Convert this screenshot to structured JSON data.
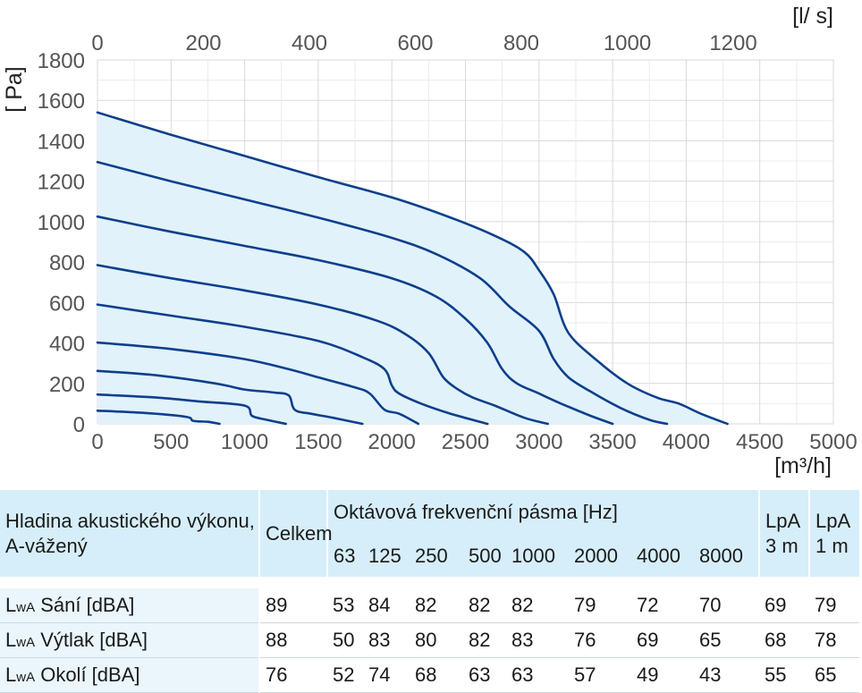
{
  "chart_data": {
    "type": "line",
    "x_bottom": {
      "unit": "[m³/h]",
      "ticks": [
        "0",
        "500",
        "1000",
        "1500",
        "2000",
        "2500",
        "3000",
        "3500",
        "4000",
        "4500",
        "5000"
      ],
      "range": [
        0,
        5000
      ]
    },
    "x_top": {
      "unit": "[l/ s]",
      "ticks": [
        "0",
        "200",
        "400",
        "600",
        "800",
        "1000",
        "1200"
      ],
      "values": [
        0,
        200,
        400,
        600,
        800,
        1000,
        1200
      ],
      "range": [
        0,
        1389
      ]
    },
    "y": {
      "unit": "[ Pa]",
      "ticks": [
        "0",
        "200",
        "400",
        "600",
        "800",
        "1000",
        "1200",
        "1400",
        "1600",
        "1800"
      ],
      "range": [
        0,
        1800
      ]
    },
    "grid": true,
    "fill_color": "#e1f2fb",
    "line_color": "#0e3f8c",
    "series": [
      {
        "points": [
          [
            0,
            1540
          ],
          [
            500,
            1430
          ],
          [
            1000,
            1325
          ],
          [
            1500,
            1220
          ],
          [
            2000,
            1120
          ],
          [
            2400,
            1020
          ],
          [
            2700,
            930
          ],
          [
            2900,
            850
          ],
          [
            3000,
            760
          ],
          [
            3100,
            640
          ],
          [
            3200,
            450
          ],
          [
            3400,
            310
          ],
          [
            3600,
            200
          ],
          [
            3800,
            130
          ],
          [
            3950,
            100
          ],
          [
            4100,
            50
          ],
          [
            4280,
            0
          ]
        ]
      },
      {
        "points": [
          [
            0,
            1295
          ],
          [
            500,
            1200
          ],
          [
            1000,
            1110
          ],
          [
            1500,
            1020
          ],
          [
            2000,
            920
          ],
          [
            2300,
            840
          ],
          [
            2600,
            720
          ],
          [
            2800,
            580
          ],
          [
            3000,
            460
          ],
          [
            3100,
            320
          ],
          [
            3200,
            230
          ],
          [
            3350,
            160
          ],
          [
            3550,
            80
          ],
          [
            3750,
            20
          ],
          [
            3870,
            0
          ]
        ]
      },
      {
        "points": [
          [
            0,
            1025
          ],
          [
            500,
            950
          ],
          [
            1000,
            880
          ],
          [
            1500,
            810
          ],
          [
            2000,
            720
          ],
          [
            2300,
            630
          ],
          [
            2500,
            520
          ],
          [
            2650,
            400
          ],
          [
            2750,
            270
          ],
          [
            2850,
            200
          ],
          [
            3000,
            150
          ],
          [
            3150,
            100
          ],
          [
            3350,
            40
          ],
          [
            3500,
            0
          ]
        ]
      },
      {
        "points": [
          [
            0,
            785
          ],
          [
            500,
            720
          ],
          [
            1000,
            660
          ],
          [
            1500,
            590
          ],
          [
            1900,
            510
          ],
          [
            2100,
            440
          ],
          [
            2250,
            350
          ],
          [
            2350,
            230
          ],
          [
            2450,
            170
          ],
          [
            2550,
            130
          ],
          [
            2700,
            90
          ],
          [
            2900,
            30
          ],
          [
            3060,
            0
          ]
        ]
      },
      {
        "points": [
          [
            0,
            590
          ],
          [
            500,
            535
          ],
          [
            1000,
            480
          ],
          [
            1500,
            410
          ],
          [
            1800,
            330
          ],
          [
            1950,
            270
          ],
          [
            2000,
            190
          ],
          [
            2050,
            150
          ],
          [
            2200,
            100
          ],
          [
            2400,
            50
          ],
          [
            2650,
            0
          ]
        ]
      },
      {
        "points": [
          [
            0,
            402
          ],
          [
            500,
            370
          ],
          [
            1000,
            320
          ],
          [
            1300,
            270
          ],
          [
            1500,
            230
          ],
          [
            1750,
            180
          ],
          [
            1850,
            150
          ],
          [
            1950,
            70
          ],
          [
            2050,
            50
          ],
          [
            2180,
            0
          ]
        ]
      },
      {
        "points": [
          [
            0,
            262
          ],
          [
            400,
            240
          ],
          [
            800,
            200
          ],
          [
            1000,
            170
          ],
          [
            1200,
            155
          ],
          [
            1300,
            140
          ],
          [
            1340,
            70
          ],
          [
            1450,
            50
          ],
          [
            1600,
            30
          ],
          [
            1800,
            0
          ]
        ]
      },
      {
        "points": [
          [
            0,
            145
          ],
          [
            400,
            130
          ],
          [
            700,
            110
          ],
          [
            1000,
            90
          ],
          [
            1050,
            40
          ],
          [
            1150,
            20
          ],
          [
            1280,
            0
          ]
        ]
      },
      {
        "points": [
          [
            0,
            65
          ],
          [
            300,
            55
          ],
          [
            600,
            35
          ],
          [
            650,
            15
          ],
          [
            750,
            10
          ],
          [
            830,
            0
          ]
        ]
      }
    ]
  },
  "table": {
    "title": "Hladina akustického výkonu, A-vážený",
    "celkem": "Celkem",
    "octave_title": "Oktávová frekvenční pásma [Hz]",
    "octaves": [
      "63",
      "125",
      "250",
      "500",
      "1000",
      "2000",
      "4000",
      "8000"
    ],
    "lpa3": "LpA 3 m",
    "lpa1": "LpA 1 m",
    "rows": [
      {
        "prefix": "L",
        "sub": "wA",
        "label": " Sání [dBA]",
        "celkem": "89",
        "bands": [
          "53",
          "84",
          "82",
          "82",
          "82",
          "79",
          "72",
          "70"
        ],
        "lpa3": "69",
        "lpa1": "79"
      },
      {
        "prefix": "L",
        "sub": "wA",
        "label": " Výtlak [dBA]",
        "celkem": "88",
        "bands": [
          "50",
          "83",
          "80",
          "82",
          "83",
          "76",
          "69",
          "65"
        ],
        "lpa3": "68",
        "lpa1": "78"
      },
      {
        "prefix": "L",
        "sub": "wA",
        "label": " Okolí [dBA]",
        "celkem": "76",
        "bands": [
          "52",
          "74",
          "68",
          "63",
          "63",
          "57",
          "49",
          "43"
        ],
        "lpa3": "55",
        "lpa1": "65"
      }
    ]
  }
}
